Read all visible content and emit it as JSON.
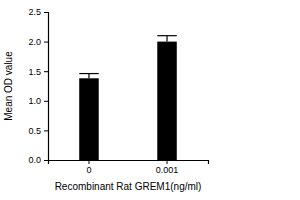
{
  "chart_data": {
    "type": "bar",
    "categories": [
      "0",
      "0.001"
    ],
    "values": [
      1.38,
      2.0
    ],
    "errors": [
      0.08,
      0.1
    ],
    "color": "#000000",
    "x_label": "Recombinant Rat GREM1(ng/ml)",
    "y_label": "Mean OD value",
    "ylim": [
      0,
      2.5
    ],
    "yticks": [
      {
        "value": 0,
        "label": "0.0"
      },
      0.5,
      {
        "value": 1,
        "label": "1.0"
      },
      1.5,
      {
        "value": 2,
        "label": "2.0"
      },
      2.5
    ],
    "grid": false
  }
}
